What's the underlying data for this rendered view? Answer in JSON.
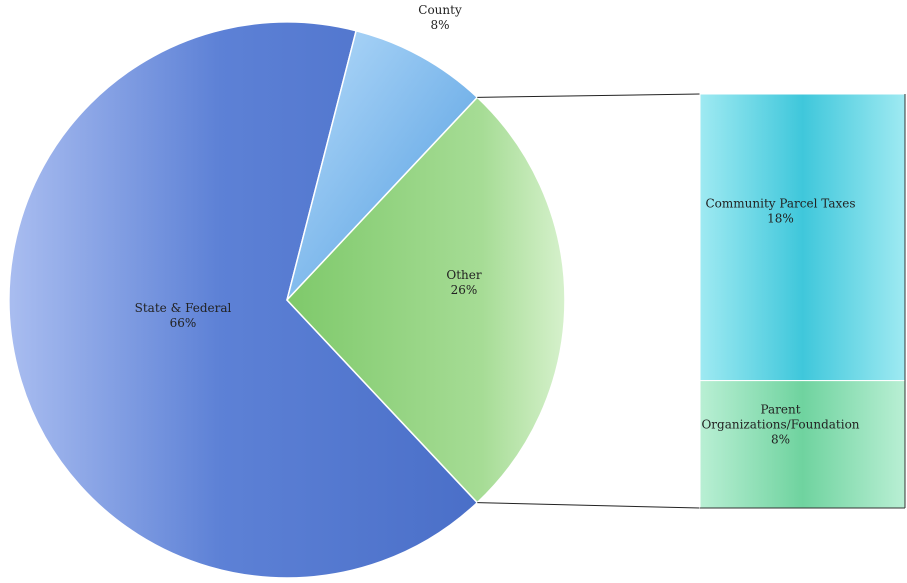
{
  "chart_data": {
    "type": "pie",
    "subtype": "bar-of-pie",
    "pie": {
      "slices": [
        {
          "name": "State & Federal",
          "value": 66,
          "value_label": "66%",
          "color": "#5b7fd4"
        },
        {
          "name": "County",
          "value": 8,
          "value_label": "8%",
          "color": "#6fb3ec"
        },
        {
          "name": "Other",
          "value": 26,
          "value_label": "26%",
          "color": "#98d384"
        }
      ]
    },
    "breakout": {
      "of_slice": "Other",
      "segments": [
        {
          "name": "Community Parcel Taxes",
          "value": 18,
          "value_label": "18%",
          "color": "#45c9dc"
        },
        {
          "name": "Parent Organizations/Foundation",
          "name_lines": [
            "Parent",
            "Organizations/Foundation"
          ],
          "value": 8,
          "value_label": "8%",
          "color": "#7bd7a6"
        }
      ]
    },
    "legend": "none"
  }
}
